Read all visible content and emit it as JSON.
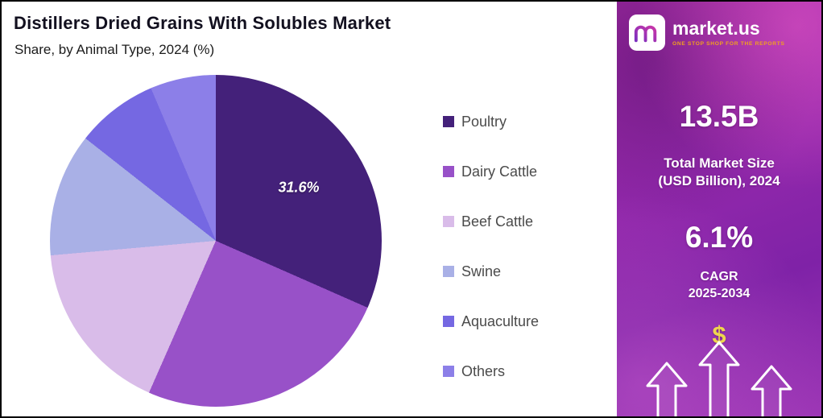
{
  "header": {
    "title": "Distillers Dried Grains With Solubles Market",
    "subtitle": "Share, by Animal Type, 2024 (%)"
  },
  "chart_data": {
    "type": "pie",
    "title": "Distillers Dried Grains With Solubles Market",
    "subtitle": "Share, by Animal Type, 2024 (%)",
    "unit": "%",
    "start_angle_deg": 0,
    "direction": "clockwise",
    "legend_position": "right",
    "slices": [
      {
        "name": "Poultry",
        "value": 31.6,
        "label": "31.6%",
        "color": "#44217a"
      },
      {
        "name": "Dairy Cattle",
        "value": 25.0,
        "label": null,
        "color": "#9851c8"
      },
      {
        "name": "Beef Cattle",
        "value": 17.0,
        "label": null,
        "color": "#d9bce9"
      },
      {
        "name": "Swine",
        "value": 12.0,
        "label": null,
        "color": "#a9b0e6"
      },
      {
        "name": "Aquaculture",
        "value": 8.0,
        "label": null,
        "color": "#7568e2"
      },
      {
        "name": "Others",
        "value": 6.4,
        "label": null,
        "color": "#8c7fe8"
      }
    ]
  },
  "sidebar": {
    "brand": {
      "name": "market.us",
      "tagline": "ONE STOP SHOP FOR THE REPORTS"
    },
    "market_size": {
      "value": "13.5B",
      "label_line1": "Total Market Size",
      "label_line2": "(USD Billion), 2024"
    },
    "cagr": {
      "value": "6.1%",
      "label_line1": "CAGR",
      "label_line2": "2025-2034"
    },
    "dollar_icon": "$",
    "accent_colors": {
      "panel_gradient_top": "#a62ba6",
      "panel_gradient_bottom": "#9c36b5",
      "tagline_color": "#f2a21d",
      "dollar_color": "#eed54e"
    }
  }
}
